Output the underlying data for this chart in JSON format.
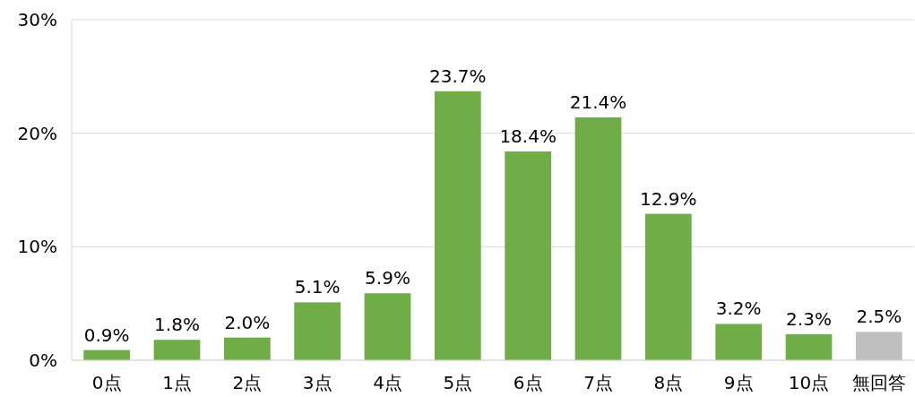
{
  "chart_data": {
    "type": "bar",
    "categories": [
      "0点",
      "1点",
      "2点",
      "3点",
      "4点",
      "5点",
      "6点",
      "7点",
      "8点",
      "9点",
      "10点",
      "無回答"
    ],
    "values": [
      0.9,
      1.8,
      2.0,
      5.1,
      5.9,
      23.7,
      18.4,
      21.4,
      12.9,
      3.2,
      2.3,
      2.5
    ],
    "colors": [
      "#70ad47",
      "#70ad47",
      "#70ad47",
      "#70ad47",
      "#70ad47",
      "#70ad47",
      "#70ad47",
      "#70ad47",
      "#70ad47",
      "#70ad47",
      "#70ad47",
      "#bfbfbf"
    ],
    "value_labels": [
      "0.9%",
      "1.8%",
      "2.0%",
      "5.1%",
      "5.9%",
      "23.7%",
      "18.4%",
      "21.4%",
      "12.9%",
      "3.2%",
      "2.3%",
      "2.5%"
    ],
    "ylim": [
      0,
      30
    ],
    "yticks": [
      {
        "value": 0,
        "label": "0%"
      },
      {
        "value": 10,
        "label": "10%"
      },
      {
        "value": 20,
        "label": "20%"
      },
      {
        "value": 30,
        "label": "30%"
      }
    ],
    "grid": "y"
  }
}
